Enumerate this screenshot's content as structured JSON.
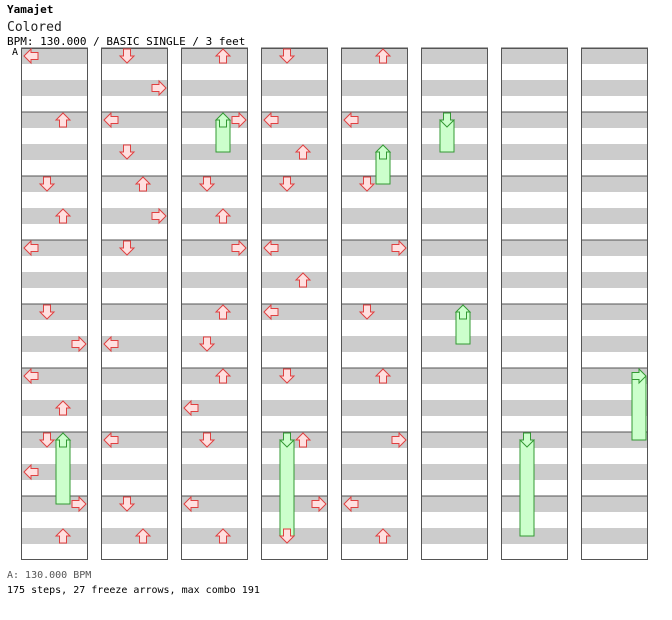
{
  "header": {
    "title": "Yamajet",
    "subtitle": "Colored",
    "info": "BPM: 130.000 / BASIC SINGLE / 3 feet",
    "bpm_marker": "A"
  },
  "footer": {
    "bpm_line": "A: 130.000 BPM",
    "stats": "175 steps, 27 freeze arrows, max combo 191"
  },
  "colors": {
    "stripe": "#cccccc",
    "tap_fill": "#ffe0e0",
    "tap_stroke": "#e04040",
    "freeze_fill": "#ccffcc",
    "freeze_stroke": "#339933",
    "border": "#555555"
  },
  "chart_data": {
    "type": "step-chart",
    "lanes": [
      "left",
      "down",
      "up",
      "right"
    ],
    "measures_per_column": 8,
    "columns": 8,
    "taps": [
      [
        0,
        0.0,
        "left"
      ],
      [
        0,
        1.0,
        "up"
      ],
      [
        0,
        2.0,
        "down"
      ],
      [
        0,
        2.5,
        "up"
      ],
      [
        0,
        3.0,
        "left"
      ],
      [
        0,
        4.0,
        "down"
      ],
      [
        0,
        4.5,
        "right"
      ],
      [
        0,
        5.0,
        "left"
      ],
      [
        0,
        5.5,
        "up"
      ],
      [
        0,
        6.0,
        "down"
      ],
      [
        0,
        6.5,
        "left"
      ],
      [
        0,
        7.0,
        "right"
      ],
      [
        0,
        7.5,
        "up"
      ],
      [
        1,
        0.0,
        "down"
      ],
      [
        1,
        0.5,
        "right"
      ],
      [
        1,
        1.0,
        "left"
      ],
      [
        1,
        1.5,
        "down"
      ],
      [
        1,
        2.0,
        "up"
      ],
      [
        1,
        2.5,
        "right"
      ],
      [
        1,
        3.0,
        "down"
      ],
      [
        1,
        4.5,
        "left"
      ],
      [
        1,
        6.0,
        "left"
      ],
      [
        1,
        7.0,
        "down"
      ],
      [
        1,
        7.5,
        "up"
      ],
      [
        2,
        0.0,
        "up"
      ],
      [
        2,
        1.0,
        "right"
      ],
      [
        2,
        2.0,
        "down"
      ],
      [
        2,
        2.5,
        "up"
      ],
      [
        2,
        3.0,
        "right"
      ],
      [
        2,
        4.0,
        "up"
      ],
      [
        2,
        4.5,
        "down"
      ],
      [
        2,
        5.0,
        "up"
      ],
      [
        2,
        5.5,
        "left"
      ],
      [
        2,
        6.0,
        "down"
      ],
      [
        2,
        7.0,
        "left"
      ],
      [
        2,
        7.5,
        "up"
      ],
      [
        3,
        0.0,
        "down"
      ],
      [
        3,
        1.0,
        "left"
      ],
      [
        3,
        1.5,
        "up"
      ],
      [
        3,
        2.0,
        "down"
      ],
      [
        3,
        3.0,
        "left"
      ],
      [
        3,
        3.5,
        "up"
      ],
      [
        3,
        4.0,
        "left"
      ],
      [
        3,
        5.0,
        "down"
      ],
      [
        3,
        6.0,
        "up"
      ],
      [
        3,
        7.0,
        "right"
      ],
      [
        3,
        7.5,
        "down"
      ],
      [
        4,
        0.0,
        "up"
      ],
      [
        4,
        1.0,
        "left"
      ],
      [
        4,
        2.0,
        "down"
      ],
      [
        4,
        3.0,
        "right"
      ],
      [
        4,
        4.0,
        "down"
      ],
      [
        4,
        5.0,
        "up"
      ],
      [
        4,
        6.0,
        "right"
      ],
      [
        4,
        7.0,
        "left"
      ],
      [
        4,
        7.5,
        "up"
      ]
    ],
    "freezes": [
      [
        0,
        6.0,
        1.0,
        "up"
      ],
      [
        2,
        1.0,
        0.5,
        "up"
      ],
      [
        3,
        6.0,
        1.5,
        "down"
      ],
      [
        4,
        1.5,
        0.5,
        "up"
      ],
      [
        5,
        1.0,
        0.5,
        "down"
      ],
      [
        5,
        4.0,
        0.5,
        "up"
      ],
      [
        6,
        6.0,
        1.5,
        "down"
      ],
      [
        7,
        5.0,
        1.0,
        "right"
      ]
    ]
  }
}
